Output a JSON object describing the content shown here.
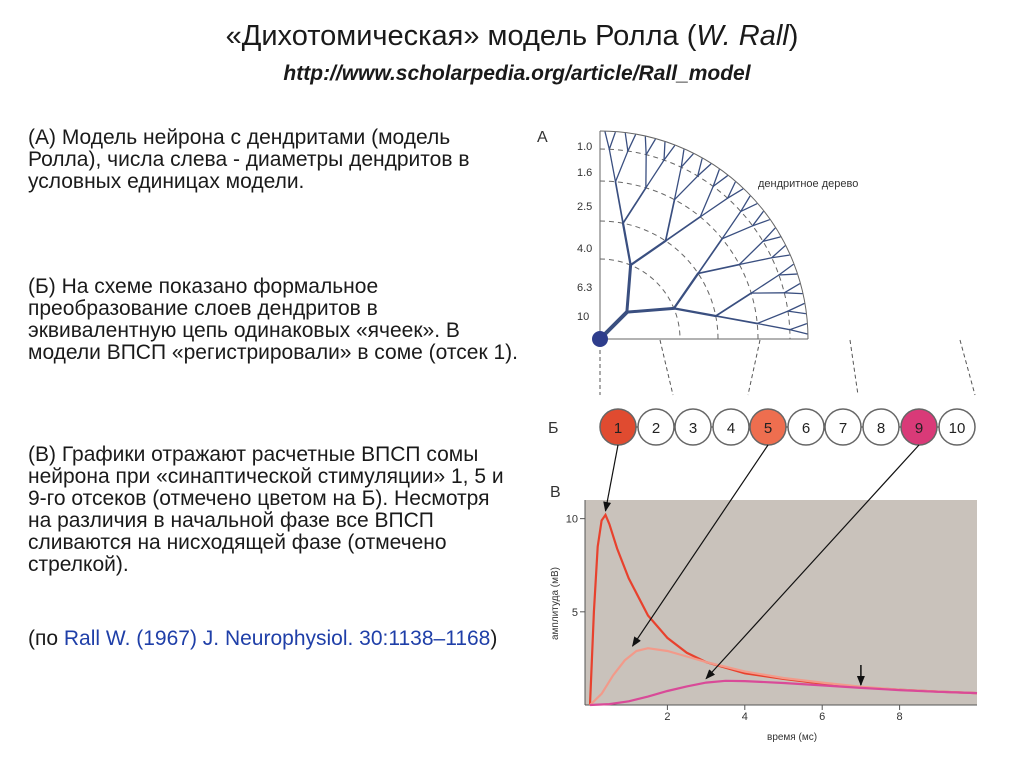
{
  "title": {
    "prefix": "«Дихотомическая» модель Ролла (",
    "author": "W. Rall",
    "suffix": ")"
  },
  "url": "http://www.scholarpedia.org/article/Rall_model",
  "paragraphs": {
    "a": "(А) Модель нейрона с дендритами (модель Ролла), числа слева - диаметры дендритов в условных единицах модели.",
    "b": "(Б) На схеме показано формальное преобразование слоев дендритов в эквивалентную цепь одинаковых «ячеек». В модели ВПСП «регистрировали» в соме (отсек 1).",
    "c": "(В) Графики отражают расчетные ВПСП сомы нейрона при «синаптической стимуляции» 1, 5 и 9-го отсеков (отмечено цветом на Б). Несмотря на различия в начальной фазе все ВПСП сливаются на нисходящей фазе (отмечено стрелкой)."
  },
  "reference": {
    "open": "(по ",
    "link": "Rall W. (1967) J. Neurophysiol. 30:1138–1168",
    "close": ")"
  },
  "figure": {
    "panel_a": {
      "letter": "А",
      "tree_label": "дендритное дерево",
      "diameters": [
        "1.0",
        "1.6",
        "2.5",
        "4.0",
        "6.3",
        "10"
      ],
      "color": "#3a4f80"
    },
    "panel_b": {
      "letter": "Б",
      "compartments": [
        "1",
        "2",
        "3",
        "4",
        "5",
        "6",
        "7",
        "8",
        "9",
        "10"
      ],
      "highlight": {
        "1": "#e04b30",
        "5": "#ee6e4f",
        "9": "#d93a78"
      }
    },
    "panel_v": {
      "letter": "В",
      "ylabel": "амплитуда (мВ)",
      "xlabel": "время (мс)",
      "background": "#c9c2bb"
    }
  },
  "chart_data": {
    "type": "line",
    "title": "",
    "xlabel": "время (мс)",
    "ylabel": "амплитуда (мВ)",
    "xlim": [
      0,
      10
    ],
    "ylim": [
      0,
      11
    ],
    "x_ticks": [
      "2",
      "4",
      "6",
      "8"
    ],
    "y_ticks": [
      "5",
      "10"
    ],
    "grid": false,
    "annotation": {
      "type": "arrow",
      "x": 7.0,
      "note": "convergence of decay phase"
    },
    "series": [
      {
        "compartment": "1",
        "color": "#e8412d",
        "x": [
          0,
          0.1,
          0.2,
          0.3,
          0.4,
          0.5,
          0.7,
          1.0,
          1.5,
          2.0,
          2.5,
          3.0,
          4.0,
          5.0,
          6.0,
          7.0,
          8.0,
          9.0,
          10.0
        ],
        "y": [
          0,
          5.0,
          8.5,
          9.9,
          10.2,
          9.7,
          8.4,
          6.8,
          4.8,
          3.6,
          2.8,
          2.3,
          1.7,
          1.4,
          1.15,
          0.95,
          0.82,
          0.72,
          0.64
        ]
      },
      {
        "compartment": "5",
        "color": "#f29a8a",
        "x": [
          0,
          0.3,
          0.6,
          0.9,
          1.2,
          1.5,
          2.0,
          2.5,
          3.0,
          4.0,
          5.0,
          6.0,
          7.0,
          8.0,
          9.0,
          10.0
        ],
        "y": [
          0,
          0.6,
          1.6,
          2.4,
          2.9,
          3.05,
          2.9,
          2.6,
          2.3,
          1.8,
          1.45,
          1.2,
          0.98,
          0.82,
          0.72,
          0.64
        ]
      },
      {
        "compartment": "9",
        "color": "#d94a98",
        "x": [
          0,
          0.5,
          1.0,
          1.5,
          2.0,
          2.5,
          3.0,
          3.5,
          4.0,
          5.0,
          6.0,
          7.0,
          8.0,
          9.0,
          10.0
        ],
        "y": [
          0,
          0.05,
          0.2,
          0.45,
          0.75,
          1.0,
          1.2,
          1.3,
          1.28,
          1.18,
          1.05,
          0.92,
          0.8,
          0.71,
          0.64
        ]
      }
    ]
  }
}
